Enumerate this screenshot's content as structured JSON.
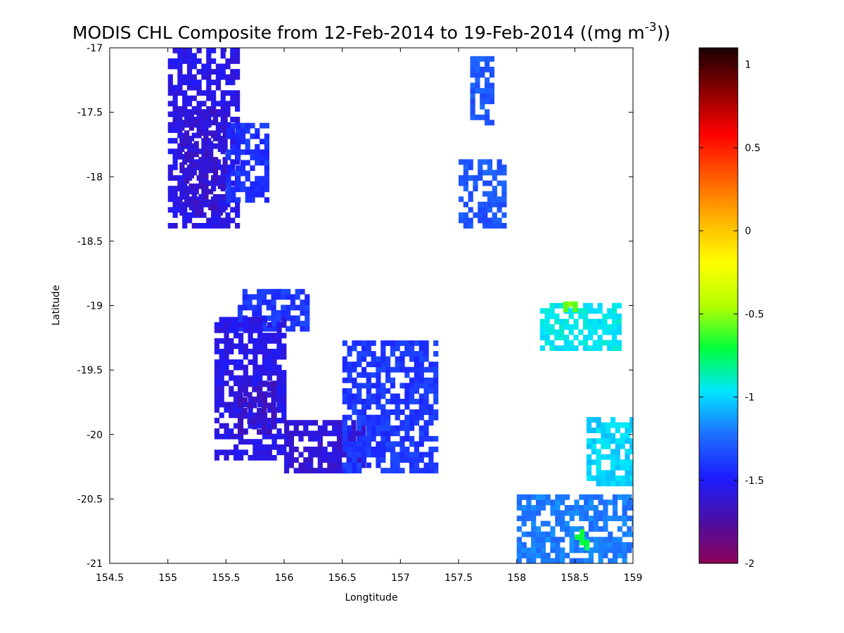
{
  "chart_data": {
    "type": "heatmap",
    "title": "MODIS CHL Composite from 12-Feb-2014 to 19-Feb-2014 ((mg m",
    "title_superscript": "-3",
    "title_suffix": "))",
    "xlabel": "Longtitude",
    "ylabel": "Latitude",
    "xlim": [
      154.5,
      159
    ],
    "ylim": [
      -21,
      -17
    ],
    "xticks": [
      "154.5",
      "155",
      "155.5",
      "156",
      "156.5",
      "157",
      "157.5",
      "158",
      "158.5",
      "159"
    ],
    "yticks": [
      "-17",
      "-17.5",
      "-18",
      "-18.5",
      "-19",
      "-19.5",
      "-20",
      "-20.5",
      "-21"
    ],
    "colorbar": {
      "range": [
        -2,
        1.1
      ],
      "ticks": [
        "1",
        "0.5",
        "0",
        "-0.5",
        "-1",
        "-1.5",
        "-2"
      ],
      "colormap": [
        "#8b0057",
        "#4b0fa6",
        "#1c1cff",
        "#1e70ff",
        "#00e6ff",
        "#00ff3c",
        "#b4ff00",
        "#ffff00",
        "#ffb400",
        "#ff5a00",
        "#ff0000",
        "#8b0000",
        "#1a0000"
      ]
    },
    "grid": false,
    "regions": [
      {
        "lon": [
          155.0,
          155.6
        ],
        "lat": [
          -18.4,
          -17.0
        ],
        "value": -1.55
      },
      {
        "lon": [
          155.1,
          155.5
        ],
        "lat": [
          -18.3,
          -17.5
        ],
        "value": -1.62
      },
      {
        "lon": [
          155.5,
          155.85
        ],
        "lat": [
          -18.2,
          -17.6
        ],
        "value": -1.42
      },
      {
        "lon": [
          155.6,
          156.2
        ],
        "lat": [
          -19.2,
          -18.9
        ],
        "value": -1.4
      },
      {
        "lon": [
          155.4,
          156.0
        ],
        "lat": [
          -20.2,
          -19.1
        ],
        "value": -1.55
      },
      {
        "lon": [
          155.6,
          155.9
        ],
        "lat": [
          -20.0,
          -19.6
        ],
        "value": -1.65
      },
      {
        "lon": [
          156.0,
          156.7
        ],
        "lat": [
          -20.3,
          -19.9
        ],
        "value": -1.6
      },
      {
        "lon": [
          156.5,
          157.3
        ],
        "lat": [
          -20.3,
          -19.3
        ],
        "value": -1.4
      },
      {
        "lon": [
          157.5,
          157.9
        ],
        "lat": [
          -18.4,
          -17.9
        ],
        "value": -1.3
      },
      {
        "lon": [
          157.6,
          157.8
        ],
        "lat": [
          -17.6,
          -17.1
        ],
        "value": -1.3
      },
      {
        "lon": [
          158.2,
          158.9
        ],
        "lat": [
          -19.35,
          -19.0
        ],
        "value": -0.95
      },
      {
        "lon": [
          158.4,
          158.5
        ],
        "lat": [
          -19.05,
          -19.0
        ],
        "value": -0.55
      },
      {
        "lon": [
          158.0,
          159.0
        ],
        "lat": [
          -21.0,
          -20.5
        ],
        "value": -1.2
      },
      {
        "lon": [
          158.5,
          158.6
        ],
        "lat": [
          -20.9,
          -20.75
        ],
        "value": -0.75
      },
      {
        "lon": [
          158.6,
          159.0
        ],
        "lat": [
          -20.4,
          -19.9
        ],
        "value": -1.0
      }
    ]
  }
}
